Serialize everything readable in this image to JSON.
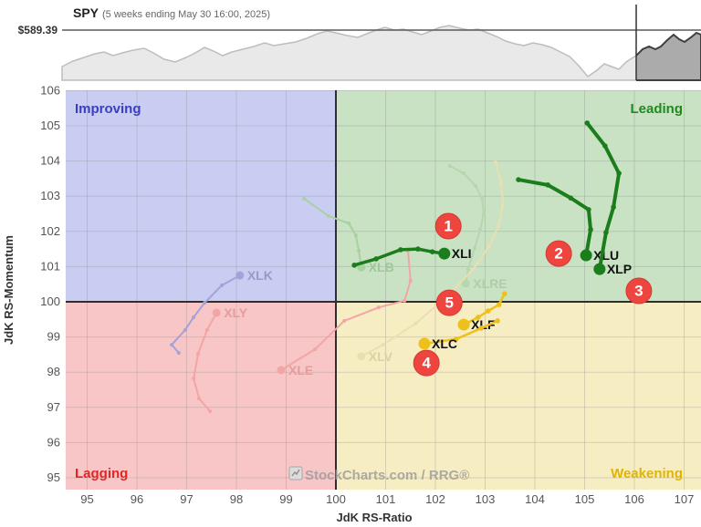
{
  "header": {
    "symbol": "SPY",
    "subtitle": "(5 weeks ending May 30 16:00, 2025)",
    "price_label": "$589.39"
  },
  "watermark": {
    "text": "StockCharts.com / RRG®"
  },
  "axes": {
    "x_title": "JdK RS-Ratio",
    "y_title": "JdK RS-Momentum",
    "x_ticks": [
      95,
      96,
      97,
      98,
      99,
      100,
      101,
      102,
      103,
      104,
      105,
      106,
      107
    ],
    "y_ticks": [
      95,
      96,
      97,
      98,
      99,
      100,
      101,
      102,
      103,
      104,
      105,
      106
    ]
  },
  "quadrants": {
    "improving": {
      "label": "Improving",
      "bg": "#c9cdf1",
      "color": "#3c3cc4"
    },
    "leading": {
      "label": "Leading",
      "bg": "#c8e2c3",
      "color": "#1f8a1f"
    },
    "lagging": {
      "label": "Lagging",
      "bg": "#f8c6c6",
      "color": "#e32525"
    },
    "weakening": {
      "label": "Weakening",
      "bg": "#f7edc3",
      "color": "#e0b400"
    }
  },
  "chart_data": {
    "type": "scatter",
    "title": "Relative Rotation Graph (RRG) of S&P sector ETFs vs SPY",
    "xlabel": "JdK RS-Ratio",
    "ylabel": "JdK RS-Momentum",
    "xlim": [
      94.6,
      107.3
    ],
    "ylim": [
      94.7,
      106.0
    ],
    "grid": true,
    "legend": false,
    "benchmark": {
      "symbol": "SPY",
      "last_price": 589.39,
      "window": "5 weeks ending May 30 16:00, 2025"
    },
    "annotation_style": {
      "fill": "#ee453f",
      "stroke": "#d23a34",
      "text": "#ffffff"
    },
    "series": [
      {
        "ticker": "XLK",
        "state": "faded",
        "color": "#a3a3d8",
        "label_color": "#9a9ac8",
        "width": 2,
        "trail": [
          [
            96.84,
            98.55
          ],
          [
            96.7,
            98.78
          ],
          [
            96.97,
            99.2
          ],
          [
            97.14,
            99.56
          ],
          [
            97.36,
            99.97
          ],
          [
            97.71,
            100.47
          ],
          [
            98.07,
            100.75
          ]
        ]
      },
      {
        "ticker": "XLY",
        "state": "faded",
        "color": "#f3a5a5",
        "label_color": "#e59c9c",
        "width": 2,
        "trail": [
          [
            97.47,
            96.89
          ],
          [
            97.25,
            97.25
          ],
          [
            97.14,
            97.82
          ],
          [
            97.23,
            98.52
          ],
          [
            97.41,
            99.2
          ],
          [
            97.6,
            99.69
          ]
        ]
      },
      {
        "ticker": "XLE",
        "state": "faded",
        "color": "#f3a5a5",
        "label_color": "#e59c9c",
        "width": 2,
        "trail": [
          [
            101.45,
            101.45
          ],
          [
            101.5,
            100.6
          ],
          [
            101.38,
            100.03
          ],
          [
            100.86,
            99.84
          ],
          [
            100.17,
            99.46
          ],
          [
            99.58,
            98.65
          ],
          [
            98.9,
            98.06
          ]
        ]
      },
      {
        "ticker": "XLB",
        "state": "faded",
        "color": "#a8d0a0",
        "label_color": "#9fc799",
        "width": 2,
        "trail": [
          [
            99.36,
            102.93
          ],
          [
            99.85,
            102.44
          ],
          [
            100.26,
            102.23
          ],
          [
            100.4,
            101.89
          ],
          [
            100.46,
            101.45
          ],
          [
            100.51,
            100.98
          ]
        ]
      },
      {
        "ticker": "XLRE",
        "state": "faded",
        "color": "#b6d6ae",
        "label_color": "#aecfa6",
        "width": 2,
        "trail": [
          [
            102.29,
            103.86
          ],
          [
            102.57,
            103.65
          ],
          [
            102.81,
            103.29
          ],
          [
            102.94,
            102.93
          ],
          [
            102.97,
            102.49
          ],
          [
            102.9,
            102.05
          ],
          [
            102.79,
            101.53
          ],
          [
            102.66,
            100.93
          ],
          [
            102.61,
            100.52
          ]
        ]
      },
      {
        "ticker": "XLV",
        "state": "faded",
        "color": "#e9dfb0",
        "label_color": "#dcd1a0",
        "width": 2,
        "trail": [
          [
            103.21,
            103.96
          ],
          [
            103.32,
            103.39
          ],
          [
            103.36,
            102.77
          ],
          [
            103.27,
            102.15
          ],
          [
            103.08,
            101.58
          ],
          [
            102.75,
            100.91
          ],
          [
            102.24,
            100.16
          ],
          [
            101.6,
            99.38
          ],
          [
            100.95,
            98.78
          ],
          [
            100.51,
            98.45
          ]
        ]
      },
      {
        "ticker": "XLI",
        "state": "active",
        "color": "#1c7d1c",
        "label_color": "#111111",
        "width": 3.5,
        "trail": [
          [
            100.37,
            101.04
          ],
          [
            100.81,
            101.22
          ],
          [
            101.3,
            101.48
          ],
          [
            101.65,
            101.5
          ],
          [
            101.94,
            101.42
          ],
          [
            102.18,
            101.37
          ]
        ]
      },
      {
        "ticker": "XLU",
        "state": "active",
        "color": "#1c7d1c",
        "label_color": "#111111",
        "width": 4,
        "trail": [
          [
            103.67,
            103.47
          ],
          [
            104.26,
            103.32
          ],
          [
            104.72,
            102.95
          ],
          [
            105.08,
            102.62
          ],
          [
            105.12,
            102.05
          ],
          [
            105.03,
            101.32
          ]
        ]
      },
      {
        "ticker": "XLP",
        "state": "active",
        "color": "#1c7d1c",
        "label_color": "#111111",
        "width": 4,
        "trail": [
          [
            105.05,
            105.08
          ],
          [
            105.41,
            104.43
          ],
          [
            105.69,
            103.65
          ],
          [
            105.58,
            102.69
          ],
          [
            105.43,
            101.97
          ],
          [
            105.3,
            100.93
          ]
        ]
      },
      {
        "ticker": "XLF",
        "state": "active",
        "color": "#eec11a",
        "label_color": "#111111",
        "width": 2.5,
        "trail": [
          [
            103.39,
            100.23
          ],
          [
            103.28,
            99.92
          ],
          [
            103.06,
            99.74
          ],
          [
            102.86,
            99.56
          ],
          [
            102.57,
            99.35
          ]
        ]
      },
      {
        "ticker": "XLC",
        "state": "active",
        "color": "#eec11a",
        "label_color": "#111111",
        "width": 2.5,
        "trail": [
          [
            103.25,
            99.46
          ],
          [
            102.92,
            99.25
          ],
          [
            102.42,
            98.94
          ],
          [
            101.78,
            98.81
          ]
        ]
      }
    ],
    "annotations": [
      {
        "label": "1",
        "x": 102.26,
        "y": 102.15
      },
      {
        "label": "2",
        "x": 104.48,
        "y": 101.37
      },
      {
        "label": "3",
        "x": 106.09,
        "y": 100.31
      },
      {
        "label": "4",
        "x": 101.82,
        "y": 98.26
      },
      {
        "label": "5",
        "x": 102.28,
        "y": 99.97
      }
    ]
  }
}
